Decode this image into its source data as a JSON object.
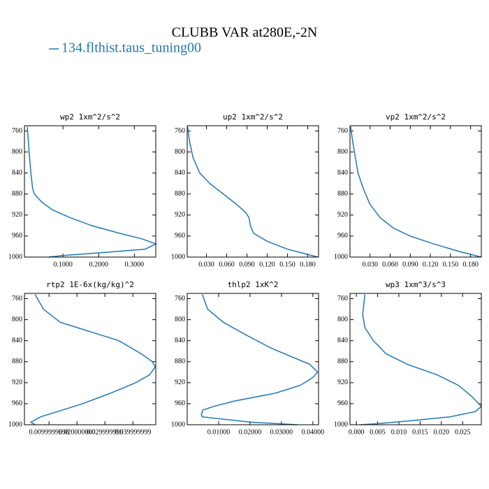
{
  "title": "CLUBB VAR at280E,-2N",
  "legend": {
    "name": "134.flthist.taus_tuning00",
    "color": "#1f77b4"
  },
  "chart_data": [
    {
      "type": "line",
      "title": "wp2  1xm^2/s^2",
      "y": [
        752,
        800,
        840,
        870,
        880,
        895,
        910,
        925,
        940,
        955,
        965,
        975,
        985,
        992,
        997,
        1000
      ],
      "series": [
        {
          "values": [
            0.0,
            0.005,
            0.01,
            0.015,
            0.02,
            0.04,
            0.07,
            0.12,
            0.18,
            0.26,
            0.32,
            0.36,
            0.33,
            0.2,
            0.1,
            0.06
          ]
        }
      ],
      "xlim": [
        -0.008,
        0.36
      ],
      "ylim": [
        1000,
        750
      ],
      "xticks": [
        {
          "value": 0.1,
          "label": "0.1000"
        },
        {
          "value": 0.2,
          "label": "0.2000"
        },
        {
          "value": 0.3,
          "label": "0.3000"
        }
      ],
      "yticks": [
        760,
        800,
        840,
        880,
        920,
        960,
        1000
      ]
    },
    {
      "type": "line",
      "title": "up2  1xm^2/s^2",
      "y": [
        752,
        780,
        810,
        840,
        860,
        880,
        900,
        915,
        925,
        940,
        955,
        970,
        985,
        995,
        1000
      ],
      "series": [
        {
          "values": [
            0.002,
            0.005,
            0.01,
            0.02,
            0.035,
            0.055,
            0.075,
            0.088,
            0.093,
            0.095,
            0.1,
            0.12,
            0.15,
            0.18,
            0.195
          ]
        }
      ],
      "xlim": [
        0.0015,
        0.196
      ],
      "ylim": [
        1000,
        750
      ],
      "xticks": [
        {
          "value": 0.03,
          "label": "0.030"
        },
        {
          "value": 0.06,
          "label": "0.060"
        },
        {
          "value": 0.09,
          "label": "0.090"
        },
        {
          "value": 0.12,
          "label": "0.120"
        },
        {
          "value": 0.15,
          "label": "0.150"
        },
        {
          "value": 0.18,
          "label": "0.180"
        }
      ],
      "yticks": [
        760,
        800,
        840,
        880,
        920,
        960,
        1000
      ]
    },
    {
      "type": "line",
      "title": "vp2  1xm^2/s^2",
      "y": [
        752,
        780,
        810,
        840,
        870,
        900,
        925,
        945,
        960,
        975,
        990,
        1000
      ],
      "series": [
        {
          "values": [
            0.001,
            0.004,
            0.008,
            0.012,
            0.02,
            0.03,
            0.045,
            0.065,
            0.09,
            0.125,
            0.165,
            0.196
          ]
        }
      ],
      "xlim": [
        0.0,
        0.196
      ],
      "ylim": [
        1000,
        750
      ],
      "xticks": [
        {
          "value": 0.03,
          "label": "0.030"
        },
        {
          "value": 0.06,
          "label": "0.060"
        },
        {
          "value": 0.09,
          "label": "0.090"
        },
        {
          "value": 0.12,
          "label": "0.120"
        },
        {
          "value": 0.15,
          "label": "0.150"
        },
        {
          "value": 0.18,
          "label": "0.180"
        }
      ],
      "yticks": [
        760,
        800,
        840,
        880,
        920,
        960,
        1000
      ]
    },
    {
      "type": "line",
      "title": "rtp2  1E-6x(kg/kg)^2",
      "y": [
        752,
        780,
        805,
        840,
        865,
        880,
        890,
        905,
        920,
        940,
        960,
        975,
        985,
        995,
        1000
      ],
      "series": [
        {
          "values": [
            0.005,
            0.008,
            0.014,
            0.035,
            0.043,
            0.047,
            0.048,
            0.046,
            0.041,
            0.032,
            0.022,
            0.013,
            0.007,
            0.0035,
            0.005
          ]
        }
      ],
      "xlim": [
        0.0012,
        0.0482
      ],
      "ylim": [
        1000,
        750
      ],
      "xticks": [
        {
          "value": 0.01,
          "label": "0.0099999998"
        },
        {
          "value": 0.02,
          "label": "0.020000000"
        },
        {
          "value": 0.03,
          "label": "0.029999999"
        },
        {
          "value": 0.04,
          "label": "0.039999999"
        }
      ],
      "yticks": [
        760,
        800,
        840,
        880,
        920,
        960,
        1000
      ]
    },
    {
      "type": "line",
      "title": "thlp2  1xK^2",
      "y": [
        752,
        780,
        805,
        830,
        855,
        875,
        885,
        900,
        910,
        925,
        940,
        955,
        965,
        972,
        980,
        985,
        995,
        1000
      ],
      "series": [
        {
          "values": [
            0.0048,
            0.0065,
            0.0115,
            0.019,
            0.027,
            0.035,
            0.039,
            0.0415,
            0.04,
            0.036,
            0.028,
            0.015,
            0.0085,
            0.005,
            0.0045,
            0.0048,
            0.02,
            0.035
          ]
        }
      ],
      "xlim": [
        0.0,
        0.0418
      ],
      "ylim": [
        1000,
        750
      ],
      "xticks": [
        {
          "value": 0.01,
          "label": "0.01000"
        },
        {
          "value": 0.02,
          "label": "0.02000"
        },
        {
          "value": 0.03,
          "label": "0.03000"
        },
        {
          "value": 0.04,
          "label": "0.04000"
        }
      ],
      "yticks": [
        760,
        800,
        840,
        880,
        920,
        960,
        1000
      ]
    },
    {
      "type": "line",
      "title": "wp3  1xm^3/s^3",
      "y": [
        752,
        790,
        815,
        840,
        865,
        885,
        905,
        925,
        945,
        965,
        975,
        985,
        993,
        998,
        1000
      ],
      "series": [
        {
          "values": [
            0.002,
            0.0015,
            0.002,
            0.004,
            0.007,
            0.012,
            0.019,
            0.024,
            0.027,
            0.0294,
            0.028,
            0.022,
            0.012,
            0.005,
            0.001
          ]
        }
      ],
      "xlim": [
        -0.0015,
        0.0294
      ],
      "ylim": [
        1000,
        750
      ],
      "xticks": [
        {
          "value": 0.0,
          "label": "0.000"
        },
        {
          "value": 0.005,
          "label": "0.005"
        },
        {
          "value": 0.01,
          "label": "0.010"
        },
        {
          "value": 0.015,
          "label": "0.015"
        },
        {
          "value": 0.02,
          "label": "0.020"
        },
        {
          "value": 0.025,
          "label": "0.025"
        }
      ],
      "yticks": [
        760,
        800,
        840,
        880,
        920,
        960,
        1000
      ]
    }
  ]
}
